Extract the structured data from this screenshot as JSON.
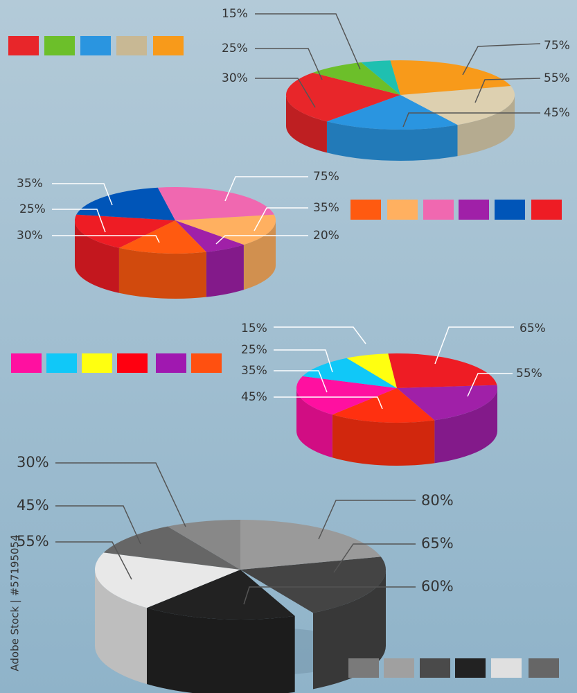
{
  "watermark": "Adobe Stock | #57195054",
  "pies": [
    {
      "labels": [
        "15%",
        "25%",
        "30%",
        "75%",
        "55%",
        "45%"
      ]
    },
    {
      "labels": [
        "35%",
        "25%",
        "30%",
        "75%",
        "35%",
        "20%"
      ]
    },
    {
      "labels": [
        "15%",
        "25%",
        "35%",
        "45%",
        "65%",
        "55%"
      ]
    },
    {
      "labels": [
        "30%",
        "45%",
        "55%",
        "80%",
        "65%",
        "60%"
      ]
    }
  ]
}
